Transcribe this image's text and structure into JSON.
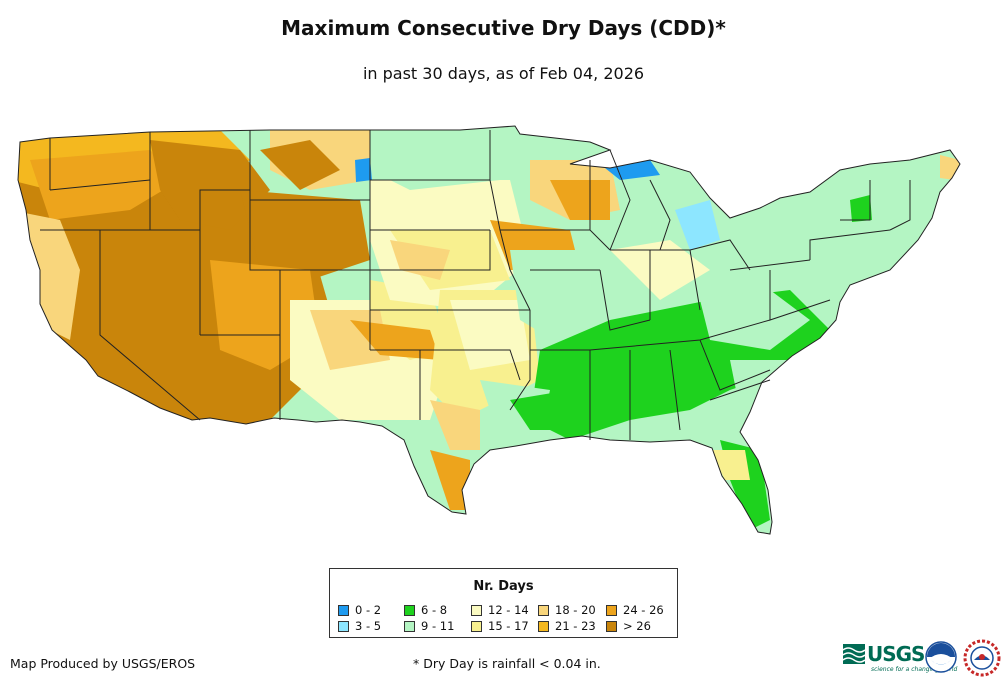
{
  "header": {
    "title": "Maximum Consecutive Dry Days (CDD)*",
    "subtitle": "in past 30 days, as of Feb 04, 2026"
  },
  "legend": {
    "title": "Nr. Days",
    "items": [
      {
        "label": "0 - 2",
        "color": "#1e9bf0"
      },
      {
        "label": "3 - 5",
        "color": "#8de6ff"
      },
      {
        "label": "6 - 8",
        "color": "#1ed21e"
      },
      {
        "label": "9 - 11",
        "color": "#b4f5c3"
      },
      {
        "label": "12 - 14",
        "color": "#fbfbc2"
      },
      {
        "label": "15 - 17",
        "color": "#f8f08f"
      },
      {
        "label": "18 - 20",
        "color": "#f9d67c"
      },
      {
        "label": "21 - 23",
        "color": "#f4b81f"
      },
      {
        "label": "24 - 26",
        "color": "#eda41c"
      },
      {
        "label": "> 26",
        "color": "#c9850b"
      }
    ]
  },
  "footer": {
    "credit": "Map Produced by USGS/EROS",
    "footnote": "* Dry Day is rainfall < 0.04 in.",
    "logo_usgs": "USGS",
    "logo_usgs_tagline": "science for a changing world"
  }
}
